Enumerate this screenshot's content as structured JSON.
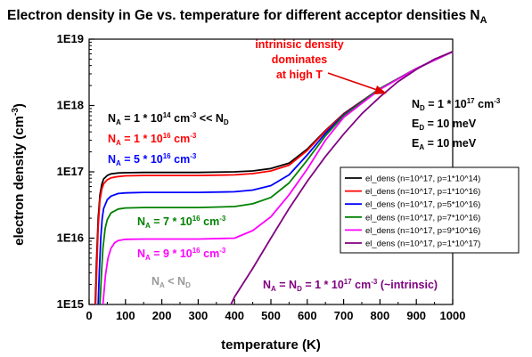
{
  "chart_data": {
    "type": "line",
    "title": "Electron density in Ge vs. temperature for different acceptor densities N",
    "title_sub": "A",
    "xlabel": "temperature (K)",
    "ylabel": "electron density (cm",
    "ylabel_sup": "-3",
    "ylabel_end": ")",
    "xlim": [
      0,
      1000
    ],
    "ylim": [
      1000000000000000.0,
      1e+19
    ],
    "y_scale": "log",
    "x_ticks": [
      0,
      100,
      200,
      300,
      400,
      500,
      600,
      700,
      800,
      900,
      1000
    ],
    "y_ticks": [
      {
        "value": 1000000000000000.0,
        "label": "1E15"
      },
      {
        "value": 1e+16,
        "label": "1E16"
      },
      {
        "value": 1e+17,
        "label": "1E17"
      },
      {
        "value": 1e+18,
        "label": "1E18"
      },
      {
        "value": 1e+19,
        "label": "1E19"
      }
    ],
    "legend_position": "right",
    "series": [
      {
        "name": "el_dens (n=10^17, p=1*10^14)",
        "color": "#000000",
        "x": [
          17,
          20,
          25,
          30,
          35,
          40,
          50,
          60,
          80,
          100,
          150,
          200,
          300,
          400,
          450,
          500,
          550,
          600,
          650,
          700,
          800,
          900,
          1000
        ],
        "y": [
          1000000000000000.0,
          4000000000000000.0,
          2e+16,
          4.5e+16,
          6.5e+16,
          7.8e+16,
          8.8e+16,
          9.3e+16,
          9.6e+16,
          9.7e+16,
          9.8e+16,
          9.8e+16,
          9.8e+16,
          1e+17,
          1.03e+17,
          1.12e+17,
          1.35e+17,
          2.2e+17,
          4.2e+17,
          7.5e+17,
          1.8e+18,
          3.6e+18,
          6.5e+18
        ]
      },
      {
        "name": "el_dens (n=10^17, p=1*10^16)",
        "color": "#ff0000",
        "x": [
          18,
          21,
          25,
          30,
          35,
          40,
          50,
          60,
          80,
          100,
          150,
          200,
          300,
          400,
          450,
          500,
          550,
          600,
          650,
          700,
          800,
          900,
          1000
        ],
        "y": [
          1000000000000000.0,
          3500000000000000.0,
          1.5e+16,
          3.8e+16,
          5.5e+16,
          6.6e+16,
          7.6e+16,
          8.1e+16,
          8.5e+16,
          8.7e+16,
          8.8e+16,
          8.8e+16,
          8.8e+16,
          9e+16,
          9.4e+16,
          1.03e+17,
          1.26e+17,
          2.1e+17,
          4.1e+17,
          7.4e+17,
          1.8e+18,
          3.6e+18,
          6.5e+18
        ]
      },
      {
        "name": "el_dens (n=10^17, p=5*10^16)",
        "color": "#0000ff",
        "x": [
          25,
          28,
          32,
          36,
          40,
          50,
          60,
          80,
          100,
          150,
          200,
          300,
          400,
          450,
          500,
          550,
          600,
          650,
          700,
          800,
          900,
          1000
        ],
        "y": [
          1000000000000000.0,
          3000000000000000.0,
          1e+16,
          2e+16,
          2.8e+16,
          3.8e+16,
          4.3e+16,
          4.7e+16,
          4.8e+16,
          4.9e+16,
          4.9e+16,
          4.9e+16,
          5e+16,
          5.3e+16,
          6.2e+16,
          9e+16,
          1.8e+17,
          3.8e+17,
          7.2e+17,
          1.8e+18,
          3.6e+18,
          6.5e+18
        ]
      },
      {
        "name": "el_dens (n=10^17, p=7*10^16)",
        "color": "#008000",
        "x": [
          30,
          34,
          38,
          44,
          50,
          60,
          80,
          100,
          150,
          200,
          300,
          400,
          450,
          500,
          550,
          600,
          650,
          700,
          800,
          900,
          1000
        ],
        "y": [
          1000000000000000.0,
          3000000000000000.0,
          7000000000000000.0,
          1.4e+16,
          1.9e+16,
          2.4e+16,
          2.75e+16,
          2.85e+16,
          2.9e+16,
          2.9e+16,
          2.9e+16,
          3e+16,
          3.3e+16,
          4.1e+16,
          6.8e+16,
          1.5e+17,
          3.5e+17,
          7e+17,
          1.8e+18,
          3.6e+18,
          6.5e+18
        ]
      },
      {
        "name": "el_dens (n=10^17, p=9*10^16)",
        "color": "#ff00ff",
        "x": [
          38,
          45,
          52,
          60,
          70,
          80,
          100,
          150,
          200,
          300,
          400,
          450,
          500,
          550,
          600,
          650,
          700,
          800,
          900,
          1000
        ],
        "y": [
          1000000000000000.0,
          2800000000000000.0,
          5000000000000000.0,
          7000000000000000.0,
          8500000000000000.0,
          9200000000000000.0,
          9600000000000000.0,
          9700000000000000.0,
          9700000000000000.0,
          9700000000000000.0,
          1e+16,
          1.3e+16,
          2.1e+16,
          4.5e+16,
          1.1e+17,
          3e+17,
          6.6e+17,
          1.75e+18,
          3.6e+18,
          6.5e+18
        ]
      },
      {
        "name": "el_dens (n=10^17, p=1*10^17)",
        "color": "#800080",
        "x": [
          390,
          400,
          450,
          500,
          550,
          600,
          650,
          700,
          750,
          800,
          850,
          900,
          950,
          1000
        ],
        "y": [
          1000000000000000.0,
          1300000000000000.0,
          3500000000000000.0,
          1e+16,
          2.8e+16,
          7.2e+16,
          1.7e+17,
          3.7e+17,
          7.5e+17,
          1.35e+18,
          2.3e+18,
          3.5e+18,
          5e+18,
          6.5e+18
        ]
      }
    ]
  },
  "annotations": {
    "intrinsic_line1": "intrinisic density",
    "intrinsic_line2": "dominates",
    "intrinsic_line3": "at high T",
    "nd_main": "N",
    "nd_sub": "D",
    "nd_rest": " = 1 * 10",
    "nd_sup": "17",
    "nd_unit": " cm",
    "nd_unit_sup": "-3",
    "ed_main": "E",
    "ed_sub": "D",
    "ed_rest": " = 10 meV",
    "ea_main": "E",
    "ea_sub": "A",
    "ea_rest": " = 10 meV",
    "na1_main": "N",
    "na1_sub": "A",
    "na1_rest": " = 1 * 10",
    "na1_sup": "14",
    "na1_unit": " cm",
    "na1_unit_sup": "-3",
    "na1_tail": " << N",
    "na1_tail_sub": "D",
    "na2_main": "N",
    "na2_sub": "A",
    "na2_rest": " = 1 * 10",
    "na2_sup": "16",
    "na2_unit": " cm",
    "na2_unit_sup": "-3",
    "na3_main": "N",
    "na3_sub": "A",
    "na3_rest": " = 5 * 10",
    "na3_sup": "16",
    "na3_unit": " cm",
    "na3_unit_sup": "-3",
    "na4_main": "N",
    "na4_sub": "A",
    "na4_rest": " = 7 * 10",
    "na4_sup": "16",
    "na4_unit": " cm",
    "na4_unit_sup": "-3",
    "na5_main": "N",
    "na5_sub": "A",
    "na5_rest": " = 9 * 10",
    "na5_sup": "16",
    "na5_unit": " cm",
    "na5_unit_sup": "-3",
    "nalt_main": "N",
    "nalt_sub": "A",
    "nalt_mid": " < N",
    "nalt_sub2": "D",
    "na6_main": "N",
    "na6_sub": "A",
    "na6_mid": " = N",
    "na6_sub2": "D",
    "na6_rest": " = 1 * 10",
    "na6_sup": "17",
    "na6_unit": " cm",
    "na6_unit_sup": "-3",
    "na6_tail": "  (~intrinsic)",
    "colors": {
      "black": "#000000",
      "red": "#ff0000",
      "blue": "#0000ff",
      "green": "#008000",
      "magenta": "#ff00ff",
      "gray": "#999999",
      "purple": "#800080",
      "arrow": "#dd0000"
    }
  }
}
